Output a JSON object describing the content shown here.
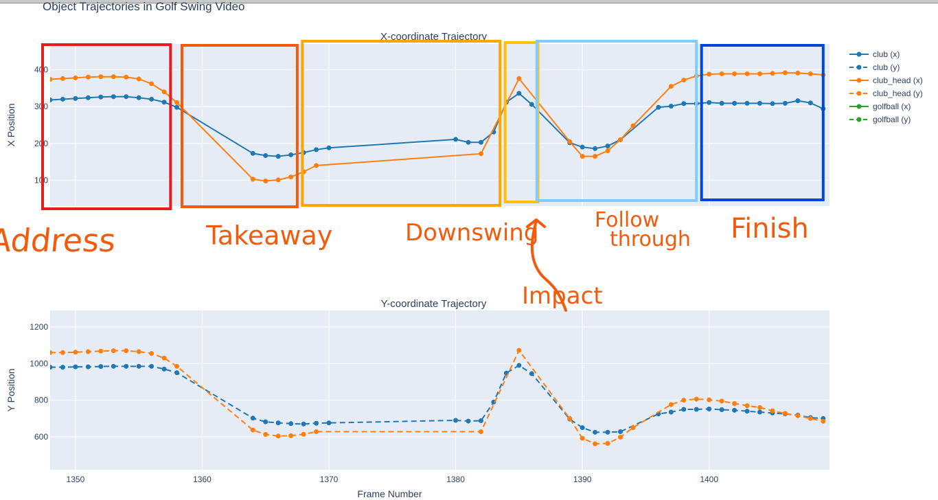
{
  "figure": {
    "title": "Object Trajectories in Golf Swing Video"
  },
  "colors": {
    "club": "#1f77b4",
    "club_head": "#ff7f0e",
    "golfball": "#2ca02c",
    "plot_bg": "#e5ecf6",
    "grid": "#ffffff",
    "annotation_text": "#f45a0b"
  },
  "legend": [
    {
      "label": "club (x)",
      "color_key": "club",
      "dash": false
    },
    {
      "label": "club (y)",
      "color_key": "club",
      "dash": true
    },
    {
      "label": "club_head (x)",
      "color_key": "club_head",
      "dash": false
    },
    {
      "label": "club_head (y)",
      "color_key": "club_head",
      "dash": true
    },
    {
      "label": "golfball (x)",
      "color_key": "golfball",
      "dash": false
    },
    {
      "label": "golfball (y)",
      "color_key": "golfball",
      "dash": true
    }
  ],
  "annotations": {
    "phases": [
      {
        "label": "Address",
        "color": "#e02020",
        "frame_range": [
          1348,
          1357.5
        ]
      },
      {
        "label": "Takeaway",
        "color": "#f45a0b",
        "frame_range": [
          1359,
          1367.5
        ]
      },
      {
        "label": "Downswing",
        "color": "#ffa500",
        "frame_range": [
          1368.5,
          1383.5
        ]
      },
      {
        "label": "Impact",
        "color": "#ffc107",
        "frame_range": [
          1384.5,
          1386.5
        ]
      },
      {
        "label": "Follow through",
        "color": "#7fcdff",
        "frame_range": [
          1387,
          1399
        ]
      },
      {
        "label": "Finish",
        "color": "#0047d4",
        "frame_range": [
          1400,
          1409
        ]
      }
    ],
    "handwritten": [
      "Address",
      "Takeaway",
      "Downswing",
      "Impact",
      "Follow",
      "through",
      "Finish"
    ]
  },
  "chart_data": [
    {
      "type": "line",
      "title": "X-coordinate Trajectory",
      "xlabel": "",
      "ylabel": "X Position",
      "xlim": [
        1348,
        1409.5
      ],
      "ylim": [
        30,
        470
      ],
      "yticks": [
        100,
        200,
        300,
        400
      ],
      "grid": true,
      "series": [
        {
          "name": "club (x)",
          "color_key": "club",
          "dash": false,
          "x": [
            1348,
            1349,
            1350,
            1351,
            1352,
            1353,
            1354,
            1355,
            1356,
            1357,
            1358,
            1364,
            1365,
            1366,
            1367,
            1368,
            1369,
            1370,
            1380,
            1381,
            1382,
            1383,
            1384,
            1385,
            1386,
            1389,
            1390,
            1391,
            1392,
            1393,
            1396,
            1397,
            1398,
            1399,
            1400,
            1401,
            1402,
            1403,
            1404,
            1405,
            1406,
            1407,
            1408,
            1409
          ],
          "y": [
            318,
            320,
            322,
            324,
            326,
            327,
            327,
            324,
            320,
            312,
            298,
            173,
            167,
            165,
            169,
            175,
            183,
            188,
            211,
            203,
            203,
            231,
            312,
            336,
            306,
            202,
            190,
            186,
            193,
            210,
            298,
            301,
            308,
            308,
            311,
            309,
            309,
            309,
            309,
            308,
            309,
            316,
            310,
            294
          ]
        },
        {
          "name": "club_head (x)",
          "color_key": "club_head",
          "dash": false,
          "x": [
            1348,
            1349,
            1350,
            1351,
            1352,
            1353,
            1354,
            1355,
            1356,
            1357,
            1358,
            1364,
            1365,
            1366,
            1367,
            1368,
            1369,
            1382,
            1385,
            1389,
            1390,
            1391,
            1392,
            1393,
            1394,
            1397,
            1398,
            1399,
            1400,
            1401,
            1402,
            1403,
            1404,
            1405,
            1406,
            1407,
            1408,
            1409
          ],
          "y": [
            374,
            376,
            378,
            380,
            381,
            381,
            380,
            375,
            362,
            340,
            311,
            103,
            98,
            101,
            109,
            123,
            140,
            172,
            376,
            205,
            165,
            165,
            180,
            210,
            248,
            355,
            372,
            383,
            388,
            389,
            389,
            389,
            389,
            390,
            392,
            391,
            389,
            386
          ]
        },
        {
          "name": "golfball (x)",
          "color_key": "golfball",
          "dash": false,
          "x": [],
          "y": []
        }
      ]
    },
    {
      "type": "line",
      "title": "Y-coordinate Trajectory",
      "xlabel": "Frame Number",
      "ylabel": "Y Position",
      "xlim": [
        1348,
        1409.5
      ],
      "ylim": [
        420,
        1290
      ],
      "xticks": [
        1350,
        1360,
        1370,
        1380,
        1390,
        1400
      ],
      "yticks": [
        600,
        800,
        1000,
        1200
      ],
      "grid": true,
      "series": [
        {
          "name": "club (y)",
          "color_key": "club",
          "dash": true,
          "x": [
            1348,
            1349,
            1350,
            1351,
            1352,
            1353,
            1354,
            1355,
            1356,
            1357,
            1358,
            1364,
            1365,
            1366,
            1367,
            1368,
            1369,
            1370,
            1380,
            1381,
            1382,
            1383,
            1384,
            1385,
            1386,
            1389,
            1390,
            1391,
            1392,
            1393,
            1396,
            1397,
            1398,
            1399,
            1400,
            1401,
            1402,
            1403,
            1404,
            1405,
            1406,
            1407,
            1408,
            1409
          ],
          "y": [
            980,
            980,
            982,
            982,
            984,
            985,
            985,
            985,
            985,
            970,
            950,
            702,
            682,
            676,
            672,
            670,
            674,
            676,
            690,
            686,
            688,
            790,
            948,
            990,
            945,
            697,
            650,
            625,
            625,
            628,
            725,
            735,
            750,
            750,
            752,
            748,
            745,
            740,
            735,
            730,
            725,
            718,
            705,
            700
          ]
        },
        {
          "name": "club_head (y)",
          "color_key": "club_head",
          "dash": true,
          "x": [
            1348,
            1349,
            1350,
            1351,
            1352,
            1353,
            1354,
            1355,
            1356,
            1357,
            1358,
            1364,
            1365,
            1366,
            1367,
            1368,
            1369,
            1382,
            1385,
            1389,
            1390,
            1391,
            1392,
            1393,
            1394,
            1397,
            1398,
            1399,
            1400,
            1401,
            1402,
            1403,
            1404,
            1405,
            1406,
            1407,
            1408,
            1409
          ],
          "y": [
            1060,
            1060,
            1062,
            1065,
            1068,
            1070,
            1070,
            1065,
            1055,
            1030,
            985,
            637,
            613,
            604,
            606,
            614,
            628,
            628,
            1072,
            700,
            592,
            562,
            564,
            598,
            650,
            776,
            800,
            806,
            802,
            795,
            782,
            770,
            760,
            742,
            728,
            715,
            700,
            685
          ]
        },
        {
          "name": "golfball (y)",
          "color_key": "golfball",
          "dash": true,
          "x": [],
          "y": []
        }
      ]
    }
  ]
}
